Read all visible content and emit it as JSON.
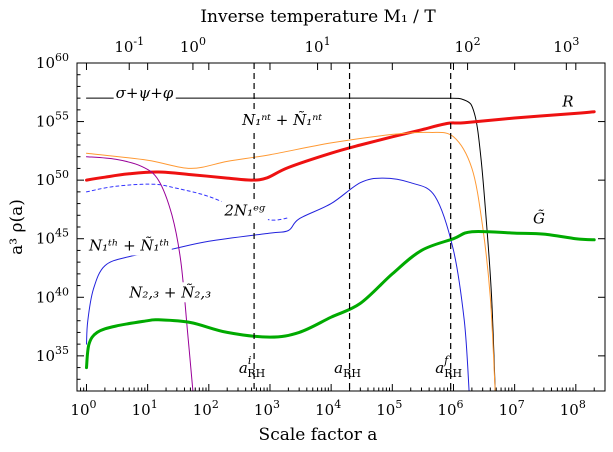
{
  "chart_data": {
    "type": "line",
    "xscale": "log",
    "yscale": "log",
    "xlabel": "Scale factor a",
    "ylabel": "a³ ρ(a)",
    "top_axis_label": "Inverse temperature M₁ / T",
    "xlim": [
      0.7,
      300000000.0
    ],
    "ylim": [
      1e+32,
      1e+60
    ],
    "x_ticks": [
      {
        "value": 1,
        "label": "10",
        "exp": "0"
      },
      {
        "value": 10,
        "label": "10",
        "exp": "1"
      },
      {
        "value": 100,
        "label": "10",
        "exp": "2"
      },
      {
        "value": 1000,
        "label": "10",
        "exp": "3"
      },
      {
        "value": 10000,
        "label": "10",
        "exp": "4"
      },
      {
        "value": 100000,
        "label": "10",
        "exp": "5"
      },
      {
        "value": 1000000,
        "label": "10",
        "exp": "6"
      },
      {
        "value": 10000000,
        "label": "10",
        "exp": "7"
      },
      {
        "value": 100000000,
        "label": "10",
        "exp": "8"
      }
    ],
    "y_ticks": [
      {
        "value": 1e+35,
        "label": "10",
        "exp": "35"
      },
      {
        "value": 1e+40,
        "label": "10",
        "exp": "40"
      },
      {
        "value": 1e+45,
        "label": "10",
        "exp": "45"
      },
      {
        "value": 1e+50,
        "label": "10",
        "exp": "50"
      },
      {
        "value": 1e+55,
        "label": "10",
        "exp": "55"
      },
      {
        "value": 1e+60,
        "label": "10",
        "exp": "60"
      }
    ],
    "top_ticks": [
      {
        "a": 5,
        "label": "10",
        "exp": "-1"
      },
      {
        "a": 55,
        "label": "10",
        "exp": "0"
      },
      {
        "a": 6000,
        "label": "10",
        "exp": "1"
      },
      {
        "a": 1700000,
        "label": "10",
        "exp": "2"
      },
      {
        "a": 70000000,
        "label": "10",
        "exp": "3"
      }
    ],
    "vertical_lines": [
      {
        "a": 550,
        "label": "a",
        "sup": "i",
        "sub": "RH"
      },
      {
        "a": 20000,
        "label": "a",
        "sub": "RH"
      },
      {
        "a": 900000,
        "label": "a",
        "sup": "f",
        "sub": "RH"
      }
    ],
    "series": [
      {
        "name": "σ+ψ+φ",
        "color": "#000000",
        "width": 1,
        "dash": "none",
        "label_at": [
          3,
          1e+57
        ],
        "points": [
          [
            1,
            1e+57
          ],
          [
            100,
            1e+57
          ],
          [
            10000,
            1e+57
          ],
          [
            500000,
            9.8e+56
          ],
          [
            1500000,
            7e+56
          ],
          [
            2200000,
            5e+55
          ],
          [
            2800000,
            1e+52
          ],
          [
            3500000,
            1e+46
          ],
          [
            4200000,
            1e+40
          ],
          [
            4800000,
            1e+32
          ]
        ]
      },
      {
        "name": "R",
        "color": "#ee1111",
        "width": 3,
        "dash": "none",
        "label_at": [
          60000000.0,
          2e+56
        ],
        "points": [
          [
            1,
            1e+50
          ],
          [
            2,
            1.8e+50
          ],
          [
            5,
            3.5e+50
          ],
          [
            15,
            5e+50
          ],
          [
            50,
            3e+50
          ],
          [
            200,
            1.5e+50
          ],
          [
            500,
            1e+50
          ],
          [
            900,
            1.6e+50
          ],
          [
            2000,
            1.2e+51
          ],
          [
            10000,
            2e+52
          ],
          [
            30000,
            1e+53
          ],
          [
            100000,
            5e+53
          ],
          [
            300000,
            2e+54
          ],
          [
            800000,
            7e+54
          ],
          [
            1500000,
            8e+54
          ],
          [
            10000000,
            2e+55
          ],
          [
            100000000,
            5e+55
          ],
          [
            200000000,
            7e+55
          ]
        ]
      },
      {
        "name": "N₁ⁿᵗ + Ñ₁ⁿᵗ",
        "color": "#ff9933",
        "width": 1,
        "dash": "none",
        "label_at": [
          350,
          5e+54
        ],
        "points": [
          [
            1,
            2e+52
          ],
          [
            10,
            5e+51
          ],
          [
            50,
            1e+51
          ],
          [
            200,
            4e+51
          ],
          [
            1000,
            1.5e+52
          ],
          [
            10000,
            1.5e+53
          ],
          [
            100000,
            8e+53
          ],
          [
            400000,
            1.2e+54
          ],
          [
            1000000,
            5e+53
          ],
          [
            2000000,
            1e+51
          ],
          [
            3000000,
            1e+46
          ],
          [
            4000000,
            1e+40
          ],
          [
            4800000,
            1e+32
          ]
        ]
      },
      {
        "name": "2N₁ᵉᵍ",
        "color": "#3333ff",
        "width": 1,
        "dash": "3,3",
        "label_at": [
          180,
          1e+47
        ],
        "points": [
          [
            1,
            1e+49
          ],
          [
            3,
            3e+49
          ],
          [
            12,
            4.5e+49
          ],
          [
            30,
            2e+49
          ],
          [
            100,
            4e+48
          ],
          [
            400,
            2e+47
          ],
          [
            1000,
            4e+46
          ],
          [
            2000,
            6e+46
          ]
        ]
      },
      {
        "name": "N₁ᵗʰ + Ñ₁ᵗʰ",
        "color": "#2222dd",
        "width": 1,
        "dash": "none",
        "label_at": [
          1.1,
          1e+44
        ],
        "points": [
          [
            1,
            1e+36
          ],
          [
            1.05,
            1e+38
          ],
          [
            1.3,
            5e+40
          ],
          [
            2,
            5e+42
          ],
          [
            5,
            3e+43
          ],
          [
            20,
            1e+44
          ],
          [
            100,
            6e+44
          ],
          [
            1000,
            3e+45
          ],
          [
            2000,
            5e+45
          ],
          [
            3000,
            5e+46
          ],
          [
            10000,
            1e+48
          ],
          [
            30000,
            6e+49
          ],
          [
            70000,
            1.5e+50
          ],
          [
            200000,
            6e+49
          ],
          [
            500000,
            4e+48
          ],
          [
            1000000,
            1e+44
          ],
          [
            1500000,
            1e+38
          ],
          [
            1800000,
            1e+32
          ]
        ]
      },
      {
        "name": "N₂,₃ + Ñ₂,₃",
        "color": "#990099",
        "width": 1,
        "dash": "none",
        "label_at": [
          5,
          1e+40
        ],
        "points": [
          [
            1,
            1e+52
          ],
          [
            3,
            6e+51
          ],
          [
            8,
            1.5e+51
          ],
          [
            15,
            1e+50
          ],
          [
            25,
            1e+47
          ],
          [
            35,
            1e+43
          ],
          [
            45,
            1e+37
          ],
          [
            55,
            1e+32
          ]
        ]
      },
      {
        "name": "G̃",
        "color": "#00aa00",
        "width": 3,
        "dash": "none",
        "label_at": [
          20000000.0,
          2e+46
        ],
        "points": [
          [
            1,
            1e+34
          ],
          [
            1.1,
            1e+36
          ],
          [
            1.5,
            1e+37
          ],
          [
            3,
            3.5e+37
          ],
          [
            10,
            1e+38
          ],
          [
            15,
            1.2e+38
          ],
          [
            50,
            7e+37
          ],
          [
            200,
            1e+37
          ],
          [
            1000,
            4e+36
          ],
          [
            3000,
            1e+37
          ],
          [
            10000,
            2e+38
          ],
          [
            30000,
            3e+39
          ],
          [
            100000,
            1e+42
          ],
          [
            300000,
            1e+44
          ],
          [
            1000000,
            1e+45
          ],
          [
            2000000,
            4e+45
          ],
          [
            10000000,
            3e+45
          ],
          [
            30000000,
            2.5e+45
          ],
          [
            100000000,
            1e+45
          ],
          [
            200000000,
            8e+44
          ]
        ]
      }
    ]
  }
}
